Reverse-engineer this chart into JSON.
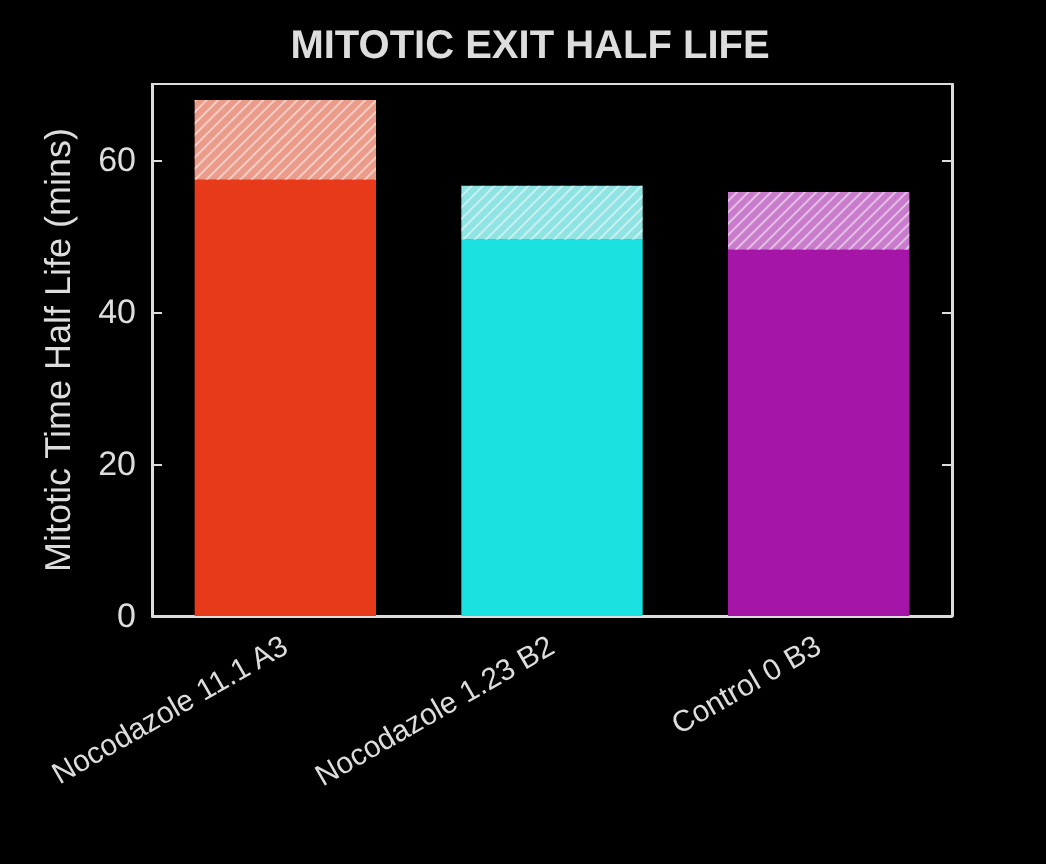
{
  "chart_data": {
    "type": "bar",
    "title": "MITOTIC EXIT HALF LIFE",
    "ylabel": "Mitotic Time Half Life (mins)",
    "categories": [
      "Nocodazole 11.1 A3",
      "Nocodazole 1.23 B2",
      "Control 0 B3"
    ],
    "stacked": true,
    "series": [
      {
        "colors": [
          "#e63a1a",
          "#1ae0e0",
          "#a515a8"
        ],
        "values": [
          57.4,
          49.5,
          48.2
        ]
      },
      {
        "colors": [
          "#eb9b8a",
          "#8fe3e3",
          "#c97ccb"
        ],
        "values": [
          10.5,
          7.1,
          7.6
        ]
      }
    ],
    "ylim": [
      0,
      70
    ],
    "yticks": [
      0,
      20,
      40,
      60
    ],
    "grid": false
  }
}
